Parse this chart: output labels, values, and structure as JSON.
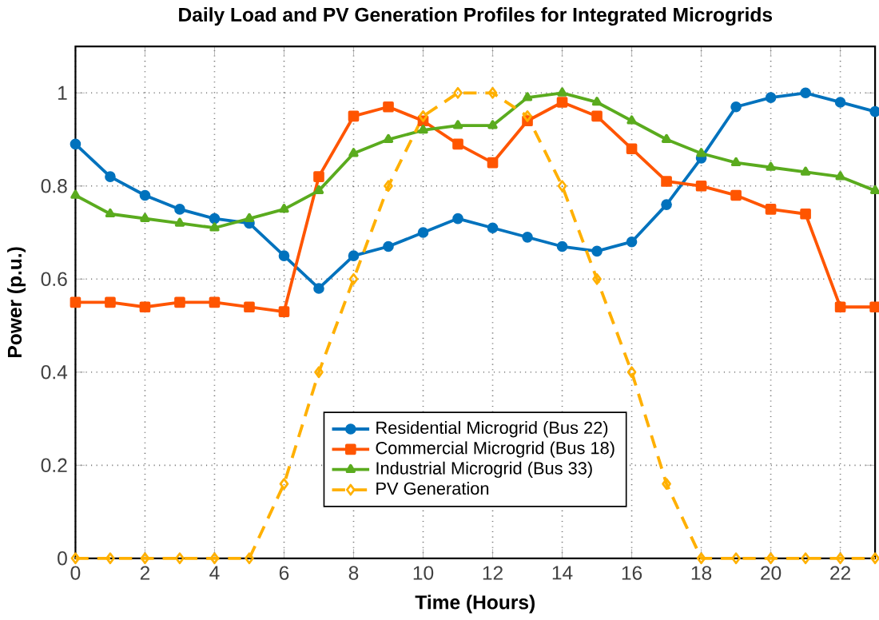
{
  "chart_data": {
    "type": "line",
    "title": "Daily Load and PV Generation Profiles for Integrated Microgrids",
    "xlabel": "Time (Hours)",
    "ylabel": "Power (p.u.)",
    "x": [
      0,
      1,
      2,
      3,
      4,
      5,
      6,
      7,
      8,
      9,
      10,
      11,
      12,
      13,
      14,
      15,
      16,
      17,
      18,
      19,
      20,
      21,
      22,
      23
    ],
    "xlim": [
      0,
      23
    ],
    "ylim": [
      0,
      1.1
    ],
    "xticks": [
      0,
      2,
      4,
      6,
      8,
      10,
      12,
      14,
      16,
      18,
      20,
      22
    ],
    "yticks": [
      0,
      0.2,
      0.4,
      0.6,
      0.8,
      1
    ],
    "grid": true,
    "legend": "bottom",
    "series": [
      {
        "name": "Residential Microgrid (Bus 22)",
        "color": "#0072bd",
        "marker": "circle",
        "line_style": "solid",
        "values": [
          0.89,
          0.82,
          0.78,
          0.75,
          0.73,
          0.72,
          0.65,
          0.58,
          0.65,
          0.67,
          0.7,
          0.73,
          0.71,
          0.69,
          0.67,
          0.66,
          0.68,
          0.76,
          0.86,
          0.97,
          0.99,
          1.0,
          0.98,
          0.96
        ]
      },
      {
        "name": "Commercial Microgrid (Bus 18)",
        "color": "#ff5500",
        "marker": "square",
        "line_style": "solid",
        "values": [
          0.55,
          0.55,
          0.54,
          0.55,
          0.55,
          0.54,
          0.53,
          0.82,
          0.95,
          0.97,
          0.94,
          0.89,
          0.85,
          0.94,
          0.98,
          0.95,
          0.88,
          0.81,
          0.8,
          0.78,
          0.75,
          0.74,
          0.54,
          0.54
        ]
      },
      {
        "name": "Industrial Microgrid (Bus 33)",
        "color": "#5aab1e",
        "marker": "triangle",
        "line_style": "solid",
        "values": [
          0.78,
          0.74,
          0.73,
          0.72,
          0.71,
          0.73,
          0.75,
          0.79,
          0.87,
          0.9,
          0.92,
          0.93,
          0.93,
          0.99,
          1.0,
          0.98,
          0.94,
          0.9,
          0.87,
          0.85,
          0.84,
          0.83,
          0.82,
          0.79
        ]
      },
      {
        "name": "PV Generation",
        "color": "#ffb000",
        "marker": "diamond",
        "line_style": "dashed",
        "values": [
          0,
          0,
          0,
          0,
          0,
          0,
          0.16,
          0.4,
          0.6,
          0.8,
          0.95,
          1.0,
          1.0,
          0.95,
          0.8,
          0.6,
          0.4,
          0.16,
          0,
          0,
          0,
          0,
          0,
          0
        ]
      }
    ]
  }
}
